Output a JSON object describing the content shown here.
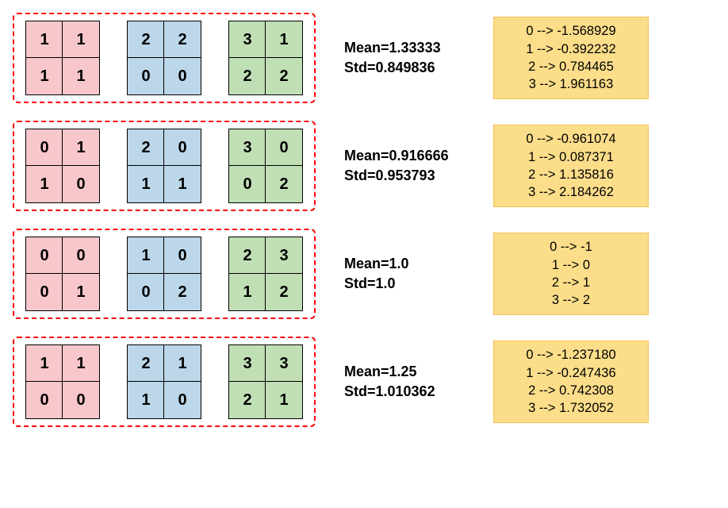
{
  "diagram": {
    "border_dash_color": "#ff0000",
    "border_dash_style": "dashed",
    "mapbox_bg": "#fbdd8a",
    "mapbox_border": "#f2c351",
    "grid_colors": [
      "#f7c7cb",
      "#bcd7ea",
      "#c1dfb5"
    ],
    "cell_font_size": 20,
    "stats_font_size": 18,
    "map_font_size": 16.5
  },
  "rows": [
    {
      "grids": [
        [
          [
            1,
            1
          ],
          [
            1,
            1
          ]
        ],
        [
          [
            2,
            2
          ],
          [
            0,
            0
          ]
        ],
        [
          [
            3,
            1
          ],
          [
            2,
            2
          ]
        ]
      ],
      "mean_label": "Mean=1.33333",
      "std_label": "Std=0.849836",
      "map": [
        "0 --> -1.568929",
        "1 --> -0.392232",
        "2 --> 0.784465",
        "3 --> 1.961163"
      ]
    },
    {
      "grids": [
        [
          [
            0,
            1
          ],
          [
            1,
            0
          ]
        ],
        [
          [
            2,
            0
          ],
          [
            1,
            1
          ]
        ],
        [
          [
            3,
            0
          ],
          [
            0,
            2
          ]
        ]
      ],
      "mean_label": "Mean=0.916666",
      "std_label": "Std=0.953793",
      "map": [
        "0 --> -0.961074",
        "1 --> 0.087371",
        "2 --> 1.135816",
        "3 --> 2.184262"
      ]
    },
    {
      "grids": [
        [
          [
            0,
            0
          ],
          [
            0,
            1
          ]
        ],
        [
          [
            1,
            0
          ],
          [
            0,
            2
          ]
        ],
        [
          [
            2,
            3
          ],
          [
            1,
            2
          ]
        ]
      ],
      "mean_label": "Mean=1.0",
      "std_label": "Std=1.0",
      "map": [
        "0 --> -1",
        "1 --> 0",
        "2 --> 1",
        "3 --> 2"
      ]
    },
    {
      "grids": [
        [
          [
            1,
            1
          ],
          [
            0,
            0
          ]
        ],
        [
          [
            2,
            1
          ],
          [
            1,
            0
          ]
        ],
        [
          [
            3,
            3
          ],
          [
            2,
            1
          ]
        ]
      ],
      "mean_label": "Mean=1.25",
      "std_label": "Std=1.010362",
      "map": [
        "0 --> -1.237180",
        "1 --> -0.247436",
        "2 --> 0.742308",
        "3 --> 1.732052"
      ]
    }
  ]
}
